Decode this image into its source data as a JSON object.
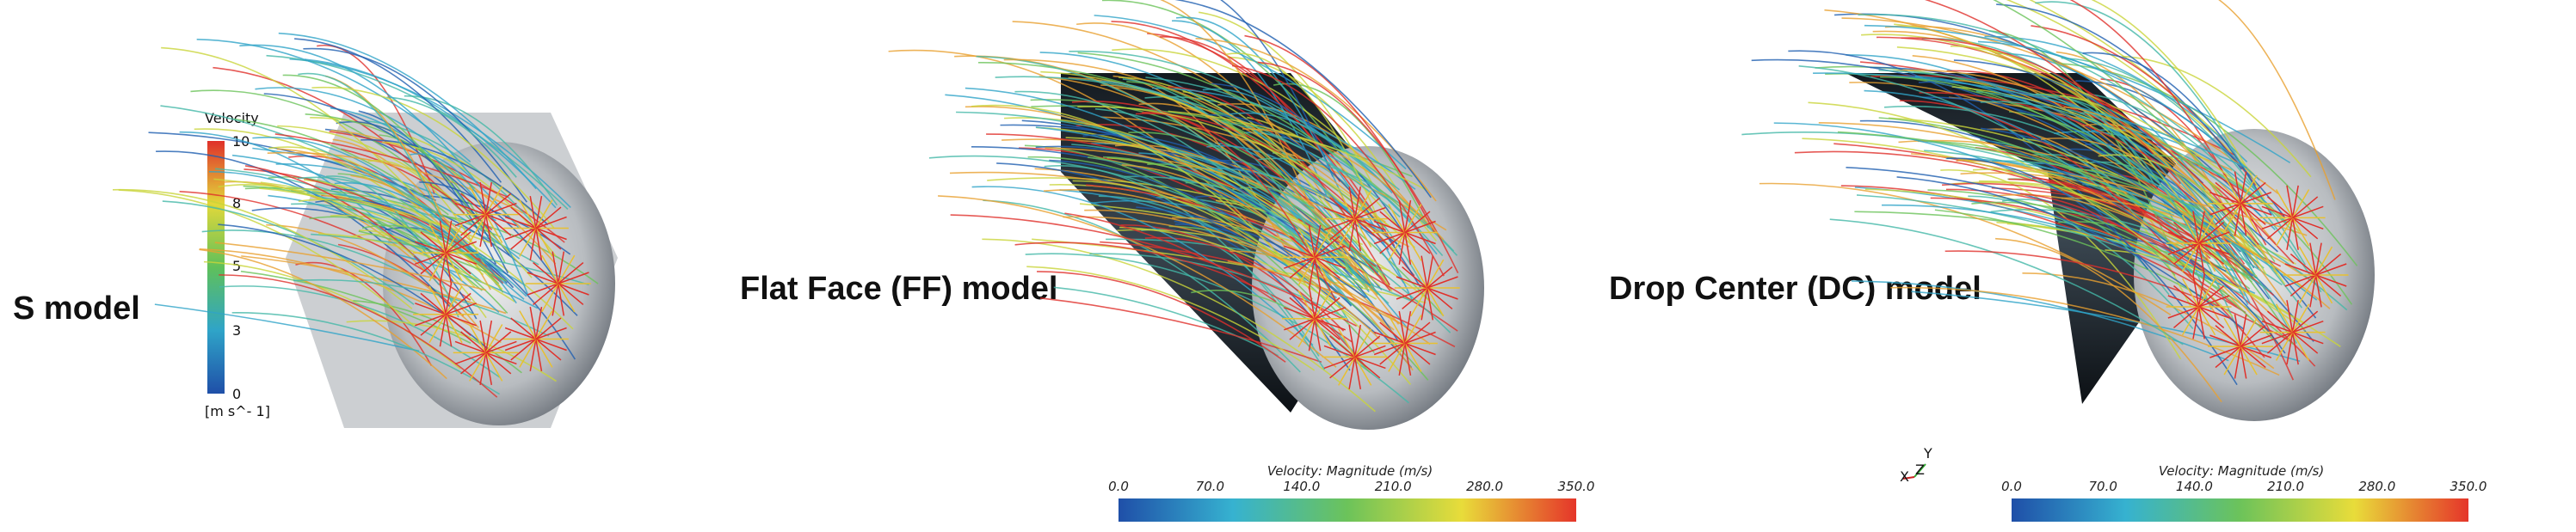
{
  "panels": [
    {
      "label": "S model",
      "legend": {
        "title": "Velocity",
        "ticks": [
          "10",
          "8",
          "5",
          "3",
          "0"
        ],
        "unit": "[m  s^- 1]"
      }
    },
    {
      "label": "Flat Face (FF) model",
      "legend": {
        "title": "Velocity: Magnitude (m/s)",
        "ticks": [
          "0.0",
          "70.0",
          "140.0",
          "210.0",
          "280.0",
          "350.0"
        ]
      }
    },
    {
      "label": "Drop Center (DC) model",
      "legend": {
        "title": "Velocity: Magnitude (m/s)",
        "ticks": [
          "0.0",
          "70.0",
          "140.0",
          "210.0",
          "280.0",
          "350.0"
        ]
      },
      "axes": {
        "y": "Y",
        "z": "Z",
        "x": "X"
      }
    }
  ]
}
